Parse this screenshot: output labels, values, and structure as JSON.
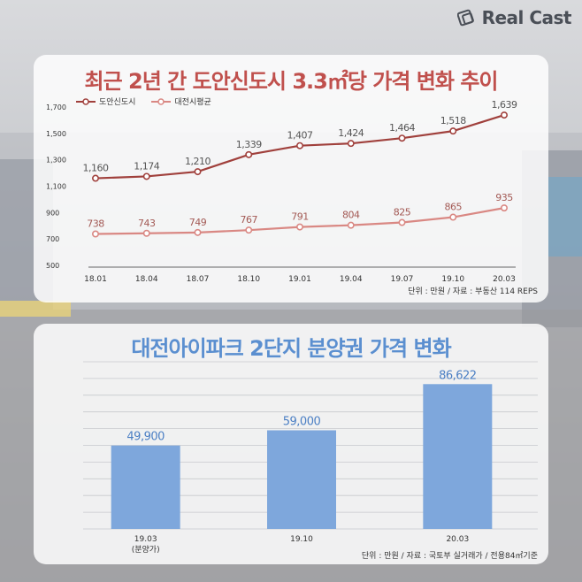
{
  "brand": {
    "name": "Real Cast"
  },
  "chart_data": [
    {
      "type": "line",
      "title": "최근 2년 간 도안신도시 3.3㎡당 가격 변화 추이",
      "categories": [
        "18.01",
        "18.04",
        "18.07",
        "18.10",
        "19.01",
        "19.04",
        "19.07",
        "19.10",
        "20.03"
      ],
      "series": [
        {
          "name": "도안신도시",
          "color": "#a0403c",
          "values": [
            1160,
            1174,
            1210,
            1339,
            1407,
            1424,
            1464,
            1518,
            1639
          ]
        },
        {
          "name": "대전시평균",
          "color": "#d98883",
          "values": [
            738,
            743,
            749,
            767,
            791,
            804,
            825,
            865,
            935
          ]
        }
      ],
      "ylim": [
        500,
        1700
      ],
      "yticks": [
        500,
        700,
        900,
        1100,
        1300,
        1500,
        1700
      ],
      "grid": false,
      "legend": "top-left",
      "note": "단위 : 만원 / 자료 : 부동산 114 REPS"
    },
    {
      "type": "bar",
      "title": "대전아이파크 2단지 분양권 가격 변화",
      "categories": [
        "19.03",
        "19.10",
        "20.03"
      ],
      "category_sublabels": [
        "(분양가)",
        "",
        ""
      ],
      "values": [
        49900,
        59000,
        86622
      ],
      "color": "#7ea7dc",
      "ylim": [
        0,
        100000
      ],
      "grid": true,
      "note": "단위 : 만원  / 자료 : 국토부 실거래가 / 전용84㎡기준"
    }
  ]
}
